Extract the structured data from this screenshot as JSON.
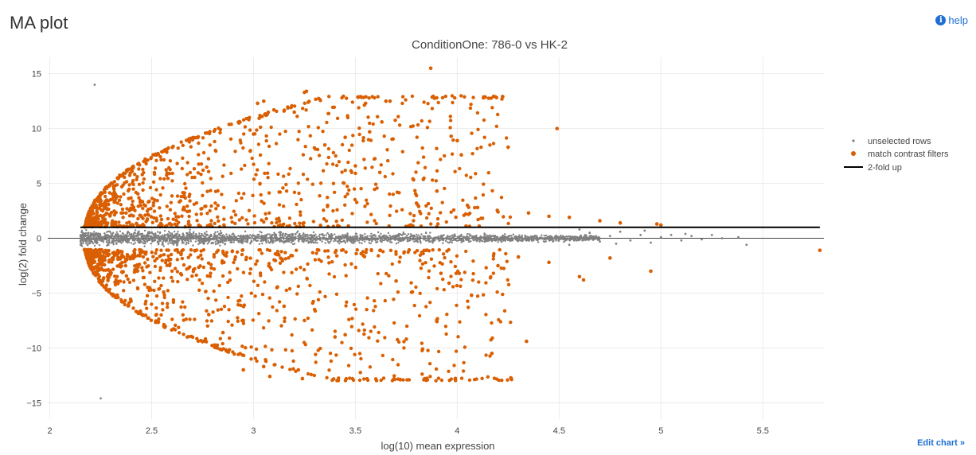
{
  "page": {
    "title": "MA plot",
    "help_label": "help",
    "help_icon": "info-icon",
    "edit_chart_label": "Edit chart »"
  },
  "chart_data": {
    "type": "scatter",
    "title": "ConditionOne: 786-0 vs HK-2",
    "xlabel": "log(10) mean expression",
    "ylabel": "log(2) fold change",
    "xlim": [
      1.99,
      5.8
    ],
    "ylim": [
      -16.5,
      16.5
    ],
    "xticks": [
      2,
      2.5,
      3,
      3.5,
      4,
      4.5,
      5,
      5.5
    ],
    "xtick_labels": [
      "2",
      "2.5",
      "3",
      "3.5",
      "4",
      "4.5",
      "5",
      "5.5"
    ],
    "yticks": [
      -15,
      -10,
      -5,
      0,
      5,
      10,
      15
    ],
    "ytick_labels": [
      "−15",
      "−10",
      "−5",
      "0",
      "5",
      "10",
      "15"
    ],
    "grid": true,
    "legend_position": "right",
    "colors": {
      "unselected": "#808080",
      "match": "#d95f02",
      "line": "#000000",
      "grid": "#ececec",
      "zero": "#444444"
    },
    "series": [
      {
        "name": "unselected rows",
        "marker": "small-dot",
        "points": [
          [
            2.22,
            14.0
          ],
          [
            2.25,
            -14.6
          ],
          [
            4.65,
            0.5
          ],
          [
            4.7,
            -0.3
          ],
          [
            4.75,
            0.2
          ],
          [
            4.8,
            0.6
          ],
          [
            4.85,
            -0.2
          ],
          [
            4.9,
            0.3
          ],
          [
            4.95,
            -0.4
          ],
          [
            5.0,
            0.1
          ],
          [
            5.05,
            0.3
          ],
          [
            5.1,
            -0.2
          ],
          [
            5.15,
            0.2
          ],
          [
            5.2,
            -0.1
          ],
          [
            5.25,
            0.3
          ],
          [
            5.3,
            0.0
          ],
          [
            5.38,
            0.1
          ],
          [
            5.42,
            -0.6
          ],
          [
            4.78,
            -0.5
          ],
          [
            4.92,
            0.7
          ],
          [
            5.12,
            0.4
          ],
          [
            4.6,
            0.8
          ],
          [
            4.55,
            -0.6
          ]
        ]
      },
      {
        "name": "match contrast filters",
        "marker": "dot",
        "points": [
          [
            3.87,
            15.5
          ],
          [
            3.26,
            13.4
          ],
          [
            3.25,
            13.3
          ],
          [
            3.05,
            12.5
          ],
          [
            3.02,
            12.3
          ],
          [
            3.65,
            12.5
          ],
          [
            3.67,
            12.5
          ],
          [
            3.55,
            12.3
          ],
          [
            3.1,
            11.7
          ],
          [
            3.15,
            11.6
          ],
          [
            3.2,
            11.5
          ],
          [
            4.49,
            10.0
          ],
          [
            3.63,
            10.6
          ],
          [
            3.57,
            9.7
          ],
          [
            3.97,
            9.3
          ],
          [
            4.0,
            8.9
          ],
          [
            4.25,
            8.3
          ],
          [
            4.02,
            7.6
          ],
          [
            3.45,
            9.2
          ],
          [
            3.35,
            8.5
          ],
          [
            3.0,
            9.5
          ],
          [
            3.5,
            6.6
          ],
          [
            3.62,
            6.0
          ],
          [
            3.9,
            4.3
          ],
          [
            3.9,
            -7.6
          ],
          [
            3.83,
            -10.1
          ],
          [
            3.75,
            -9.2
          ],
          [
            4.17,
            -10.5
          ],
          [
            4.34,
            -9.4
          ],
          [
            4.6,
            -3.5
          ],
          [
            4.62,
            -3.8
          ],
          [
            4.95,
            -3.0
          ],
          [
            5.78,
            -1.1
          ],
          [
            4.3,
            -1.7
          ],
          [
            3.78,
            -4.9
          ],
          [
            3.96,
            -4.1
          ],
          [
            4.07,
            -5.2
          ],
          [
            3.45,
            -8.8
          ],
          [
            3.4,
            -9.0
          ],
          [
            3.25,
            -7.5
          ],
          [
            3.22,
            -12.0
          ],
          [
            3.24,
            -12.8
          ],
          [
            3.05,
            -11.7
          ],
          [
            3.08,
            -12.6
          ],
          [
            2.95,
            -12.0
          ],
          [
            3.8,
            3.2
          ],
          [
            4.05,
            3.0
          ],
          [
            4.1,
            2.8
          ],
          [
            4.2,
            2.4
          ],
          [
            4.35,
            2.3
          ],
          [
            4.45,
            2.0
          ],
          [
            4.55,
            1.9
          ],
          [
            4.7,
            1.6
          ],
          [
            4.8,
            1.4
          ],
          [
            4.98,
            1.3
          ],
          [
            5.0,
            1.2
          ],
          [
            4.75,
            -1.8
          ],
          [
            4.45,
            -2.2
          ],
          [
            4.2,
            -2.5
          ],
          [
            3.92,
            -3.2
          ],
          [
            3.7,
            -3.9
          ],
          [
            3.3,
            -6.5
          ],
          [
            3.15,
            -6.2
          ],
          [
            2.95,
            -7.5
          ],
          [
            2.85,
            -8.6
          ]
        ]
      },
      {
        "name": "2-fold up",
        "marker": "line",
        "x": [
          2.15,
          5.78
        ],
        "y": [
          1.0,
          1.0
        ]
      }
    ]
  }
}
